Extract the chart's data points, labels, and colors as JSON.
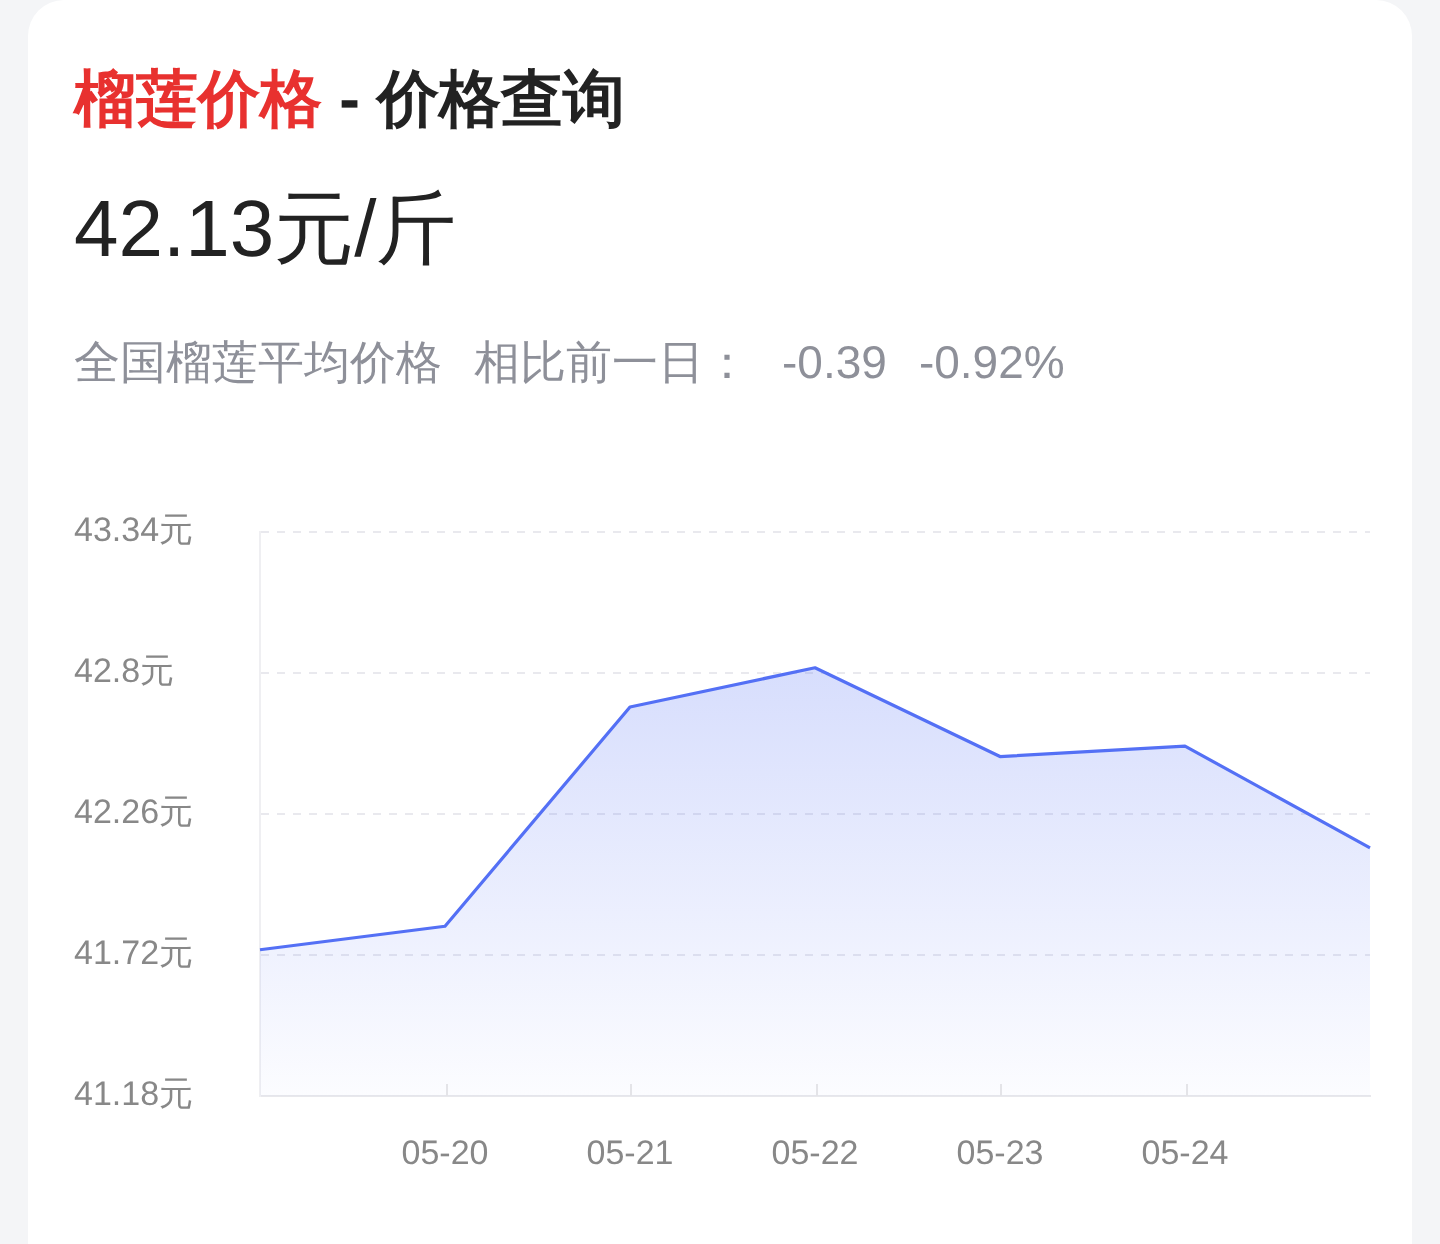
{
  "chart_data": {
    "type": "area",
    "title": "榴莲价格 - 价格查询",
    "subtitle": "42.13元/斤",
    "annotations": [
      "全国榴莲平均价格",
      "相比前一日：",
      "-0.39",
      "-0.92%"
    ],
    "categories": [
      null,
      "05-20",
      "05-21",
      "05-22",
      "05-23",
      "05-24",
      null
    ],
    "values": [
      41.74,
      41.83,
      42.67,
      42.82,
      42.48,
      42.52,
      42.13
    ],
    "color": "#5470f5",
    "ylim": [
      41.18,
      43.34
    ],
    "yticks": [
      {
        "value": 41.18,
        "label": "41.18元"
      },
      {
        "value": 41.72,
        "label": "41.72元"
      },
      {
        "value": 42.26,
        "label": "42.26元"
      },
      {
        "value": 42.8,
        "label": "42.8元"
      },
      {
        "value": 43.34,
        "label": "43.34元"
      }
    ],
    "grid": "y",
    "marker": "none"
  }
}
